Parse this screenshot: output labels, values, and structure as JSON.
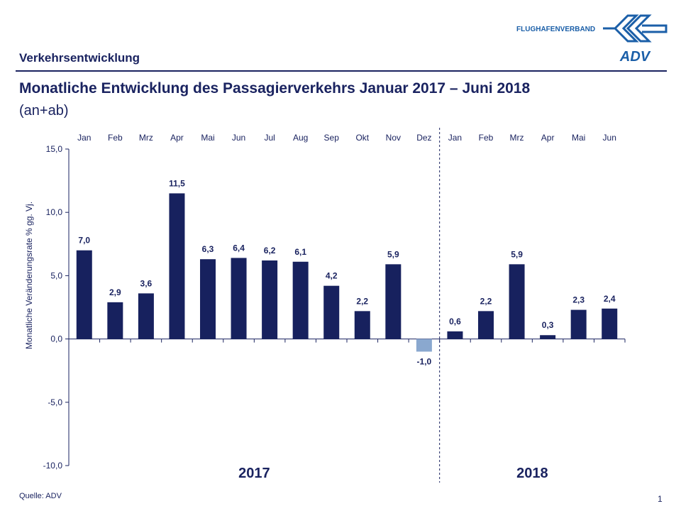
{
  "header": {
    "section": "Verkehrsentwicklung",
    "title": "Monatliche Entwicklung des Passagierverkehrs  Januar 2017 – Juni 2018",
    "subtitle": "(an+ab)",
    "logo_text": "FLUGHAFENVERBAND",
    "logo_mark": "ADV"
  },
  "footer": {
    "source": "Quelle: ADV",
    "page": "1"
  },
  "colors": {
    "bar": "#17215e",
    "negative_bar": "#8aa8cf",
    "text": "#1a2360",
    "logo": "#1b5fa8"
  },
  "chart_data": {
    "type": "bar",
    "categories": [
      "Jan",
      "Feb",
      "Mrz",
      "Apr",
      "Mai",
      "Jun",
      "Jul",
      "Aug",
      "Sep",
      "Okt",
      "Nov",
      "Dez",
      "Jan",
      "Feb",
      "Mrz",
      "Apr",
      "Mai",
      "Jun"
    ],
    "values": [
      7.0,
      2.9,
      3.6,
      11.5,
      6.3,
      6.4,
      6.2,
      6.1,
      4.2,
      2.2,
      5.9,
      -1.0,
      0.6,
      2.2,
      5.9,
      0.3,
      2.3,
      2.4
    ],
    "data_labels": [
      "7,0",
      "2,9",
      "3,6",
      "11,5",
      "6,3",
      "6,4",
      "6,2",
      "6,1",
      "4,2",
      "2,2",
      "5,9",
      "-1,0",
      "0,6",
      "2,2",
      "5,9",
      "0,3",
      "2,3",
      "2,4"
    ],
    "groups": [
      "2017",
      "2018"
    ],
    "ylabel": "Monatliche Veränderungsrate % gg. Vj.",
    "ylim": [
      -10,
      15
    ],
    "yticks": [
      "-10,0",
      "-5,0",
      "0,0",
      "5,0",
      "10,0",
      "15,0"
    ],
    "grid": false
  }
}
